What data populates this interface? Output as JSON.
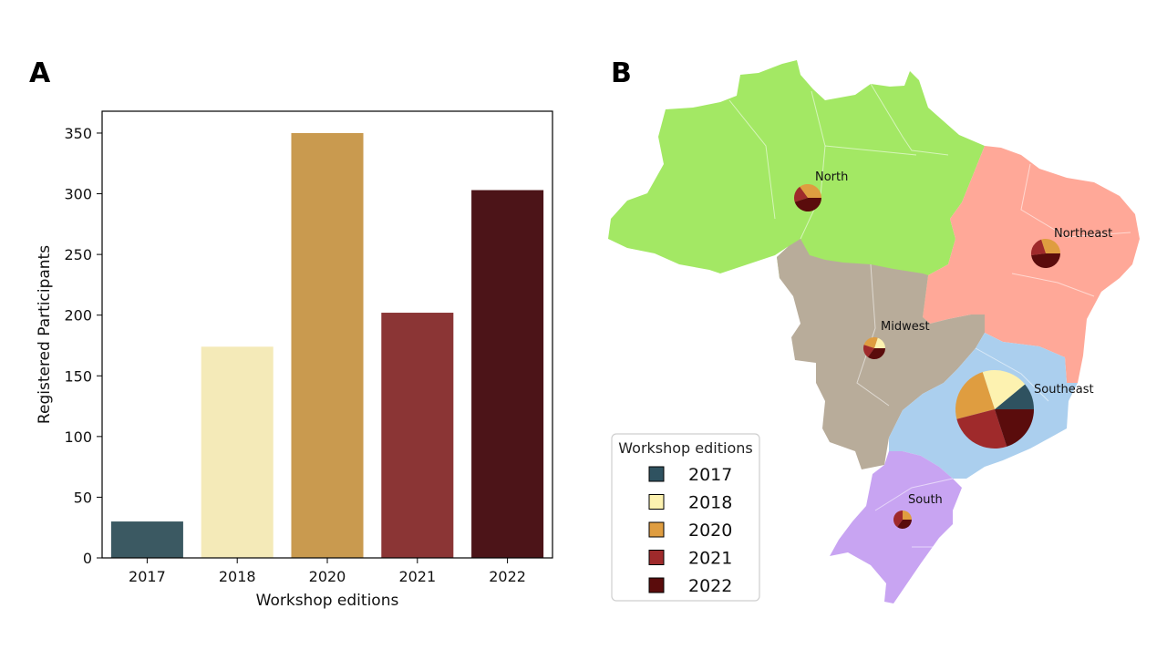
{
  "panels": {
    "a": "A",
    "b": "B"
  },
  "chart_data": [
    {
      "type": "bar",
      "categories": [
        "2017",
        "2018",
        "2020",
        "2021",
        "2022"
      ],
      "values": [
        30,
        174,
        350,
        202,
        303
      ],
      "colors": [
        "#3b5962",
        "#f4eab8",
        "#c99a4f",
        "#8b3535",
        "#4c1418"
      ],
      "xlabel": "Workshop editions",
      "ylabel": "Registered Participants",
      "yticks": [
        0,
        50,
        100,
        150,
        200,
        250,
        300,
        350
      ],
      "ylim": [
        0,
        368
      ],
      "grid": false
    },
    {
      "type": "pie",
      "legend": {
        "title": "Workshop editions",
        "placement": "lower-left",
        "entries": [
          "2017",
          "2018",
          "2020",
          "2021",
          "2022"
        ],
        "colors": [
          "#2f5260",
          "#fdf2b0",
          "#df9d40",
          "#9f2a2b",
          "#5a0c0c"
        ]
      },
      "regions": [
        {
          "name": "North",
          "color": "#a3e864",
          "values": [
            0,
            0,
            35,
            20,
            45
          ]
        },
        {
          "name": "Northeast",
          "color": "#ffa898",
          "values": [
            0,
            0,
            30,
            22,
            48
          ]
        },
        {
          "name": "Midwest",
          "color": "#b8ac9a",
          "values": [
            0,
            20,
            25,
            20,
            35
          ]
        },
        {
          "name": "Southeast",
          "color": "#abcfee",
          "values": [
            11,
            19,
            24,
            26,
            20
          ]
        },
        {
          "name": "South",
          "color": "#c8a4f2",
          "values": [
            0,
            0,
            25,
            40,
            35
          ]
        }
      ]
    }
  ]
}
